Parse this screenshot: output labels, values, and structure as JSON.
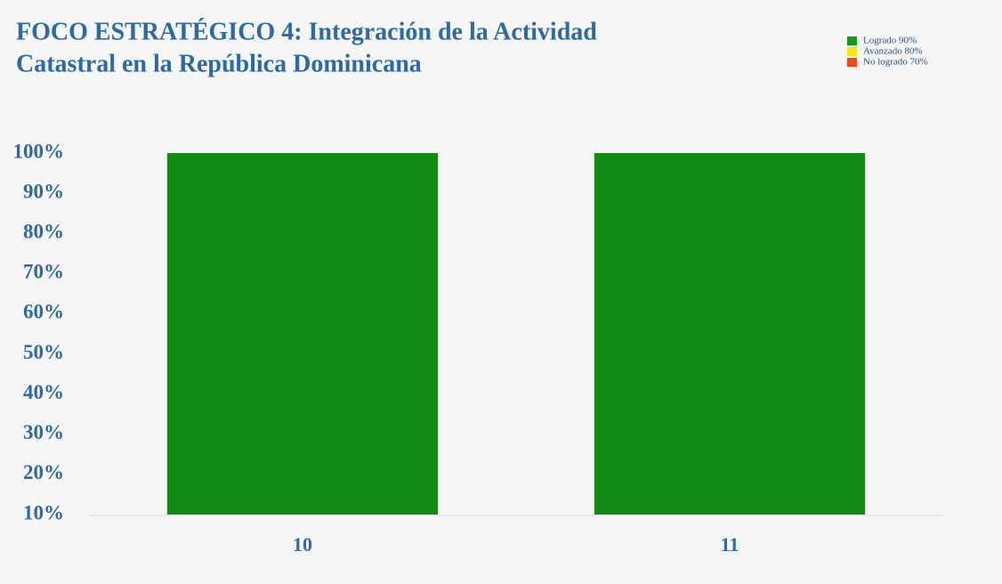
{
  "chart_data": {
    "type": "bar",
    "title": [
      "FOCO  ESTRATÉGICO 4: Integración de la Actividad",
      "Catastral en la República Dominicana"
    ],
    "categories": [
      "10",
      "11"
    ],
    "values": [
      100,
      100
    ],
    "color": "#128a14",
    "ylim": [
      10,
      100
    ],
    "yticks": [
      {
        "value": 10,
        "label": "10%"
      },
      {
        "value": 20,
        "label": "20%"
      },
      {
        "value": 30,
        "label": "30%"
      },
      {
        "value": 40,
        "label": "40%"
      },
      {
        "value": 50,
        "label": "50%"
      },
      {
        "value": 60,
        "label": "60%"
      },
      {
        "value": 70,
        "label": "70%"
      },
      {
        "value": 80,
        "label": "80%"
      },
      {
        "value": 90,
        "label": "90%"
      },
      {
        "value": 100,
        "label": "100%"
      }
    ],
    "grid": false,
    "legend": [
      {
        "name": "Logrado 90%",
        "color": "#139a1c"
      },
      {
        "name": "Avanzado 80%",
        "color": "#f2e81a"
      },
      {
        "name": "No logrado 70%",
        "color": "#ee4b1c"
      }
    ]
  }
}
